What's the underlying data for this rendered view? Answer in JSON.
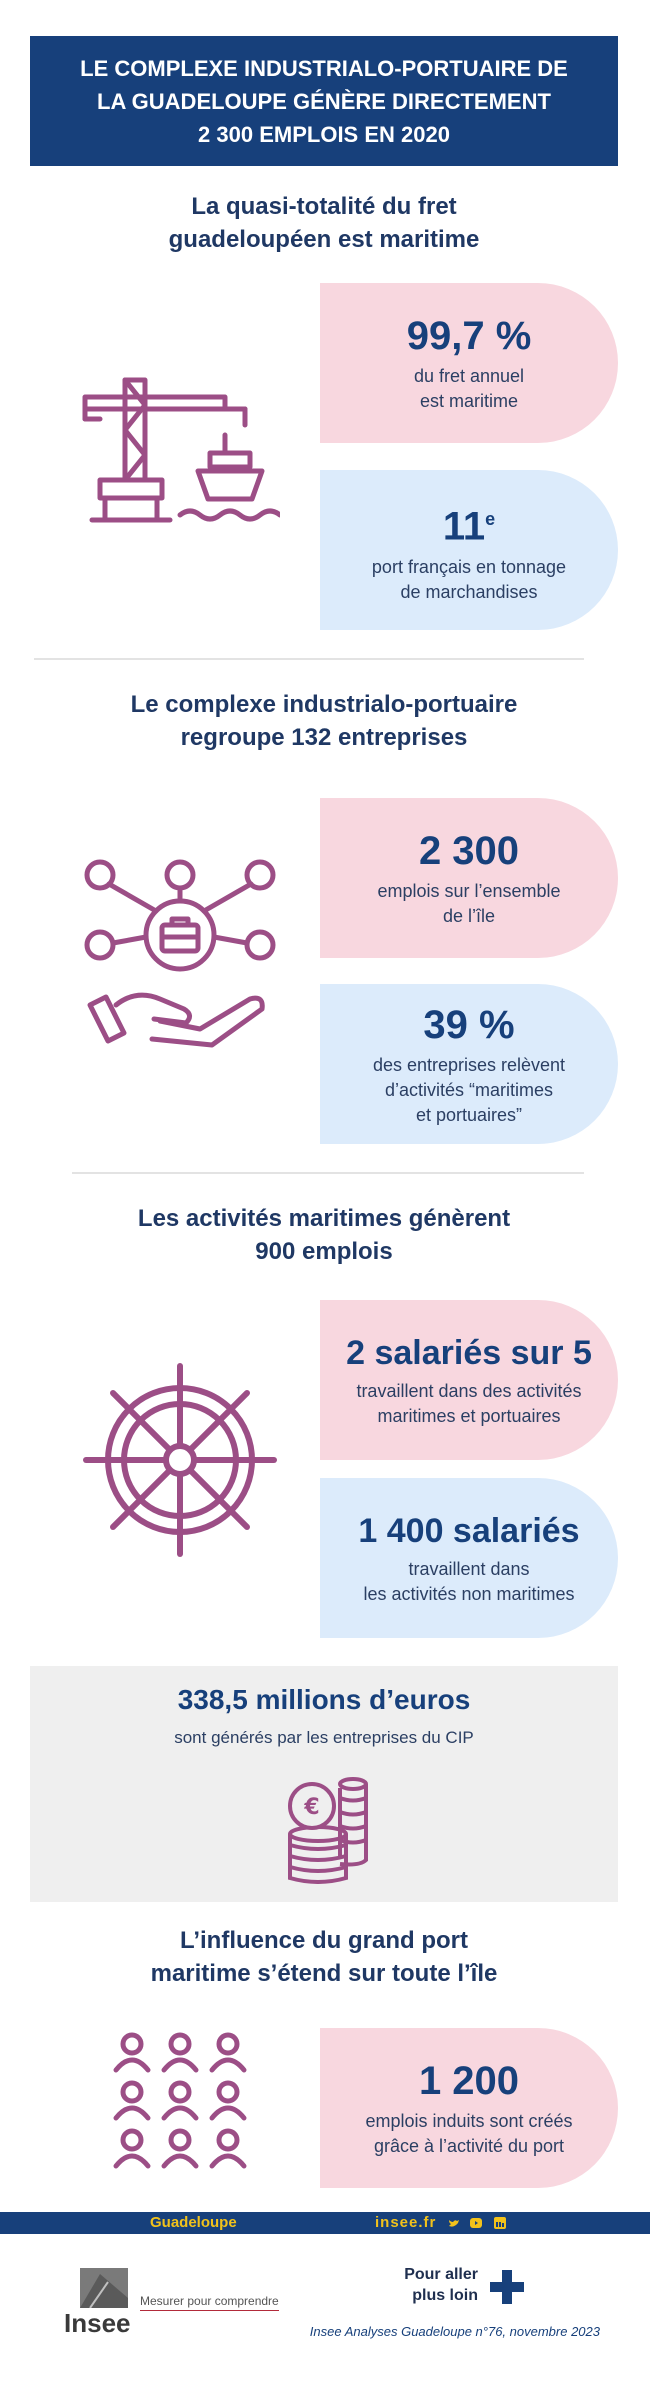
{
  "header": {
    "title": "LE COMPLEXE INDUSTRIALO-PORTUAIRE DE\nLA GUADELOUPE GÉNÈRE DIRECTEMENT\n2 300 EMPLOIS EN 2020"
  },
  "section1": {
    "title": "La quasi-totalité du fret\nguadeloupéen est maritime",
    "icon": "crane-ship-icon",
    "stat1": {
      "value": "99,7 %",
      "text": "du fret annuel\nest maritime"
    },
    "stat2": {
      "value": "11",
      "sup": "e",
      "text": "port français en tonnage\nde marchandises"
    }
  },
  "section2": {
    "title": "Le complexe industrialo-portuaire\nregroupe 132 entreprises",
    "icon": "network-briefcase-hand-icon",
    "stat1": {
      "value": "2 300",
      "text": "emplois sur l’ensemble\nde l’île"
    },
    "stat2": {
      "value": "39 %",
      "text": "des entreprises relèvent\nd’activités “maritimes\net portuaires”"
    }
  },
  "section3": {
    "title": "Les activités maritimes génèrent\n900 emplois",
    "icon": "ship-wheel-icon",
    "stat1": {
      "value": "2 salariés sur 5",
      "text": "travaillent dans des activités\nmaritimes et portuaires"
    },
    "stat2": {
      "value": "1 400 salariés",
      "text": "travaillent dans\nles activités non maritimes"
    }
  },
  "money": {
    "value": "338,5 millions d’euros",
    "text": "sont générés par les entreprises du CIP",
    "icon": "euro-coins-icon"
  },
  "section4": {
    "title": "L’influence du grand port\nmaritime s’étend sur toute l’île",
    "icon": "people-group-icon",
    "stat1": {
      "value": "1 200",
      "text": "emplois induits sont créés\ngrâce à l’activité du port"
    }
  },
  "footer": {
    "region": "Guadeloupe",
    "site": "insee.fr",
    "social": [
      "twitter-icon",
      "youtube-icon",
      "linkedin-icon"
    ],
    "logo_word": "Insee",
    "tagline": "Mesurer pour comprendre",
    "more": "Pour aller\nplus loin",
    "reference": "Insee Analyses Guadeloupe n°76, novembre 2023",
    "colors": {
      "navy": "#17407b",
      "pink": "#f8d7df",
      "blue": "#dcebfb",
      "plum": "#9c4e86",
      "gold": "#f2c21b"
    }
  }
}
